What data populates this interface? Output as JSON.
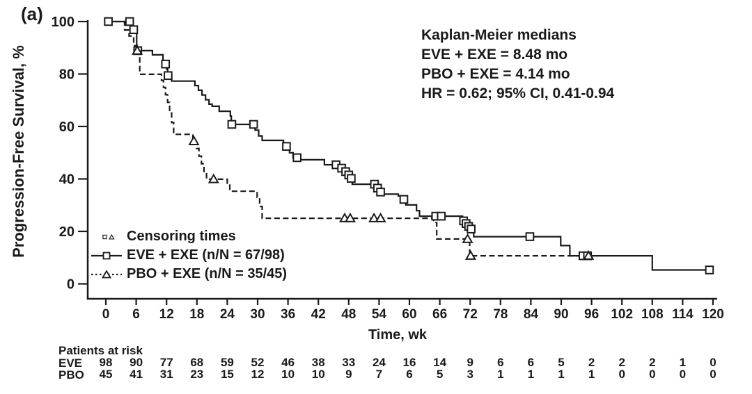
{
  "panel_label": "(a)",
  "colors": {
    "ink": "#1a1a1a",
    "background": "#ffffff"
  },
  "chart_data": {
    "type": "line",
    "subtype": "kaplan-meier-step",
    "title": "",
    "xlabel": "Time, wk",
    "ylabel": "Progression-Free Survival, %",
    "xlim": [
      0,
      120
    ],
    "ylim": [
      0,
      100
    ],
    "x_ticks": [
      0,
      6,
      12,
      18,
      24,
      30,
      36,
      42,
      48,
      54,
      60,
      66,
      72,
      78,
      84,
      90,
      96,
      102,
      108,
      114,
      120
    ],
    "y_ticks": [
      0,
      20,
      40,
      60,
      80,
      100
    ],
    "grid": false,
    "legend_position": "lower-left",
    "annotation": {
      "lines": [
        "Kaplan-Meier medians",
        "EVE + EXE = 8.48 mo",
        "PBO + EXE = 4.14 mo",
        "HR = 0.62; 95% CI, 0.41-0.94"
      ]
    },
    "legend": {
      "censoring_label": "Censoring times",
      "entries": [
        {
          "label": "EVE + EXE (n/N = 67/98)"
        },
        {
          "label": "PBO + EXE (n/N = 35/45)"
        }
      ]
    },
    "medians": {
      "EVE_EXE": "8.48 mo",
      "PBO_EXE": "4.14 mo"
    },
    "hazard_ratio": "HR = 0.62; 95% CI, 0.41-0.94",
    "series": [
      {
        "name": "EVE + EXE",
        "events_n_over_N": "67/98",
        "line": "solid",
        "marker": "square",
        "end_time": 119.8,
        "steps": [
          [
            0,
            100
          ],
          [
            4.9,
            96.9
          ],
          [
            6.1,
            88.9
          ],
          [
            9.2,
            87.3
          ],
          [
            11.3,
            83.8
          ],
          [
            12.0,
            81.9
          ],
          [
            12.2,
            79.4
          ],
          [
            13.0,
            77.3
          ],
          [
            17.6,
            75.6
          ],
          [
            18.3,
            73.8
          ],
          [
            19.0,
            72.0
          ],
          [
            19.7,
            70.2
          ],
          [
            20.4,
            68.5
          ],
          [
            21.0,
            67.7
          ],
          [
            22.4,
            65.8
          ],
          [
            24.6,
            64.0
          ],
          [
            24.8,
            60.8
          ],
          [
            29.5,
            58.6
          ],
          [
            30.2,
            56.4
          ],
          [
            30.9,
            54.7
          ],
          [
            35.1,
            52.4
          ],
          [
            36.3,
            50.0
          ],
          [
            37.0,
            48.1
          ],
          [
            38.0,
            47.3
          ],
          [
            43.2,
            45.4
          ],
          [
            45.8,
            44.1
          ],
          [
            46.9,
            42.8
          ],
          [
            47.6,
            41.5
          ],
          [
            48.2,
            40.2
          ],
          [
            48.7,
            38.0
          ],
          [
            53.4,
            36.5
          ],
          [
            54.0,
            35.0
          ],
          [
            54.7,
            34.2
          ],
          [
            57.8,
            33.5
          ],
          [
            58.5,
            32.2
          ],
          [
            59.3,
            30.1
          ],
          [
            61.4,
            27.9
          ],
          [
            62.0,
            25.8
          ],
          [
            70.5,
            24.0
          ],
          [
            71.1,
            23.0
          ],
          [
            71.6,
            21.9
          ],
          [
            72.1,
            20.9
          ],
          [
            72.7,
            18.0
          ],
          [
            89.9,
            14.6
          ],
          [
            91.7,
            10.7
          ],
          [
            108,
            5.3
          ]
        ],
        "censors": [
          [
            0.5,
            100
          ],
          [
            4.7,
            100
          ],
          [
            5.5,
            96.9
          ],
          [
            6.3,
            88.9
          ],
          [
            11.8,
            83.8
          ],
          [
            12.3,
            79.4
          ],
          [
            24.9,
            60.8
          ],
          [
            29.2,
            60.8
          ],
          [
            35.7,
            52.4
          ],
          [
            37.8,
            48.1
          ],
          [
            45.5,
            45.4
          ],
          [
            46.6,
            44.1
          ],
          [
            47.4,
            42.8
          ],
          [
            48.0,
            41.5
          ],
          [
            48.5,
            40.2
          ],
          [
            53.1,
            38.0
          ],
          [
            53.7,
            36.5
          ],
          [
            54.3,
            35.0
          ],
          [
            58.9,
            32.2
          ],
          [
            65.2,
            25.8
          ],
          [
            66.3,
            25.8
          ],
          [
            70.7,
            24.0
          ],
          [
            71.2,
            23.0
          ],
          [
            71.7,
            21.9
          ],
          [
            72.2,
            20.9
          ],
          [
            83.8,
            18.0
          ],
          [
            94.3,
            10.7
          ],
          [
            95.2,
            10.7
          ],
          [
            119.3,
            5.3
          ]
        ]
      },
      {
        "name": "PBO + EXE",
        "events_n_over_N": "35/45",
        "line": "dashed",
        "marker": "triangle",
        "end_time": 95.8,
        "steps": [
          [
            0,
            100
          ],
          [
            3.7,
            96.8
          ],
          [
            4.6,
            94.5
          ],
          [
            5.5,
            90.8
          ],
          [
            6.2,
            88.9
          ],
          [
            6.7,
            79.9
          ],
          [
            11.0,
            77.6
          ],
          [
            11.4,
            74.9
          ],
          [
            11.8,
            72.1
          ],
          [
            12.2,
            69.2
          ],
          [
            12.6,
            65.7
          ],
          [
            13.0,
            61.5
          ],
          [
            13.4,
            57.0
          ],
          [
            17.2,
            54.4
          ],
          [
            17.9,
            51.6
          ],
          [
            18.4,
            48.7
          ],
          [
            18.9,
            45.8
          ],
          [
            19.4,
            42.8
          ],
          [
            19.9,
            39.9
          ],
          [
            24.0,
            37.7
          ],
          [
            24.5,
            35.3
          ],
          [
            29.9,
            33.0
          ],
          [
            30.4,
            29.5
          ],
          [
            30.9,
            25.0
          ],
          [
            64.8,
            23.4
          ],
          [
            65.4,
            17.1
          ],
          [
            71.9,
            10.7
          ]
        ],
        "censors": [
          [
            6.2,
            88.9
          ],
          [
            17.4,
            54.4
          ],
          [
            21.3,
            39.9
          ],
          [
            47.2,
            25.0
          ],
          [
            48.3,
            25.0
          ],
          [
            53.0,
            25.0
          ],
          [
            54.3,
            25.0
          ],
          [
            71.5,
            17.1
          ],
          [
            72.1,
            10.7
          ],
          [
            95.4,
            10.7
          ]
        ]
      }
    ],
    "risk_table": {
      "title": "Patients at risk",
      "time_points": [
        0,
        6,
        12,
        18,
        24,
        30,
        36,
        42,
        48,
        54,
        60,
        66,
        72,
        78,
        84,
        90,
        96,
        102,
        108,
        114,
        120
      ],
      "rows": [
        {
          "label": "EVE",
          "counts": [
            98,
            90,
            77,
            68,
            59,
            52,
            46,
            38,
            33,
            24,
            16,
            14,
            9,
            6,
            6,
            5,
            2,
            2,
            2,
            1,
            0
          ]
        },
        {
          "label": "PBO",
          "counts": [
            45,
            41,
            31,
            23,
            15,
            12,
            10,
            10,
            9,
            7,
            6,
            5,
            3,
            1,
            1,
            1,
            1,
            0,
            0,
            0,
            0
          ]
        }
      ]
    }
  }
}
